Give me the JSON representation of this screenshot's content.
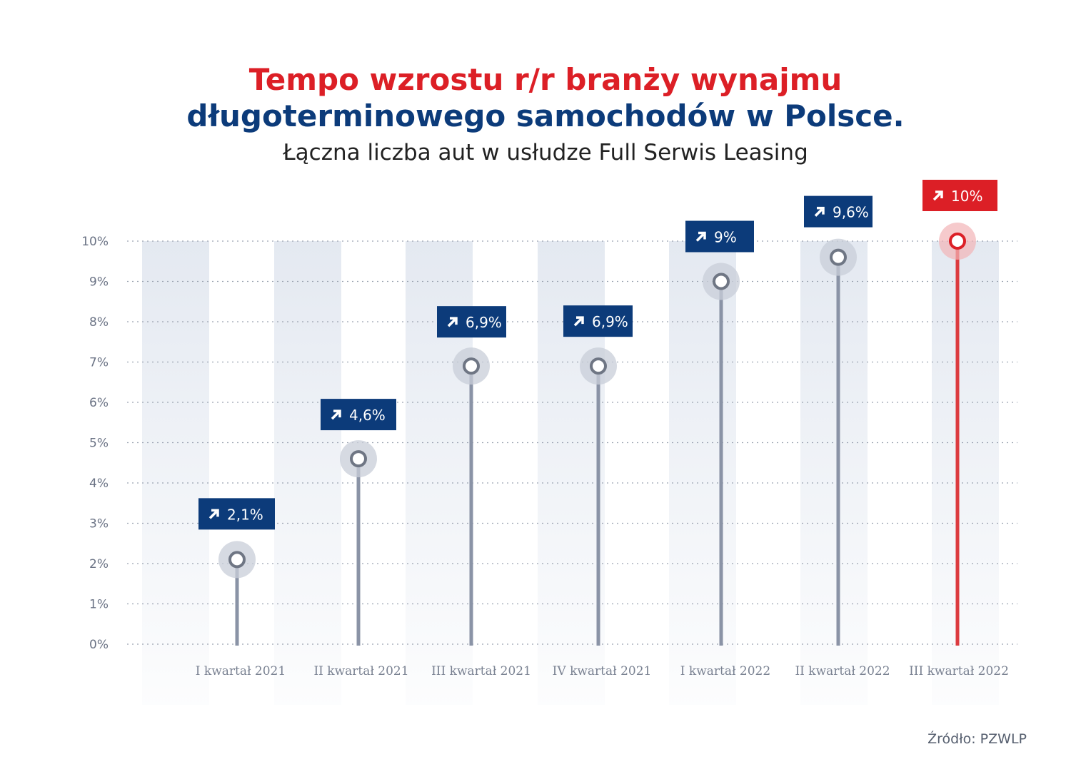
{
  "chart_data": {
    "type": "lollipop",
    "title": "Tempo wzrostu r/r branży wynajmu",
    "title_line2": "długoterminowego samochodów w Polsce.",
    "subtitle": "Łączna liczba aut w usłudze Full Serwis Leasing",
    "source": "Źródło: PZWLP",
    "categories": [
      "I kwartał 2021",
      "II kwartał 2021",
      "III kwartał 2021",
      "IV kwartał 2021",
      "I kwartał 2022",
      "II kwartał 2022",
      "III kwartał 2022"
    ],
    "values": [
      2.1,
      4.6,
      6.9,
      6.9,
      9.0,
      9.6,
      10.0
    ],
    "data_labels": [
      "2,1%",
      "4,6%",
      "6,9%",
      "6,9%",
      "9%",
      "9,6%",
      "10%"
    ],
    "y_ticks": [
      "0%",
      "1%",
      "2%",
      "3%",
      "4%",
      "5%",
      "6%",
      "7%",
      "8%",
      "9%",
      "10%"
    ],
    "ylim": [
      0,
      10
    ],
    "grid": true,
    "colors": {
      "default": "#0c3b7a",
      "highlight": "#dc1f26",
      "stem": "#8a93a6"
    },
    "highlight_index": 6
  }
}
